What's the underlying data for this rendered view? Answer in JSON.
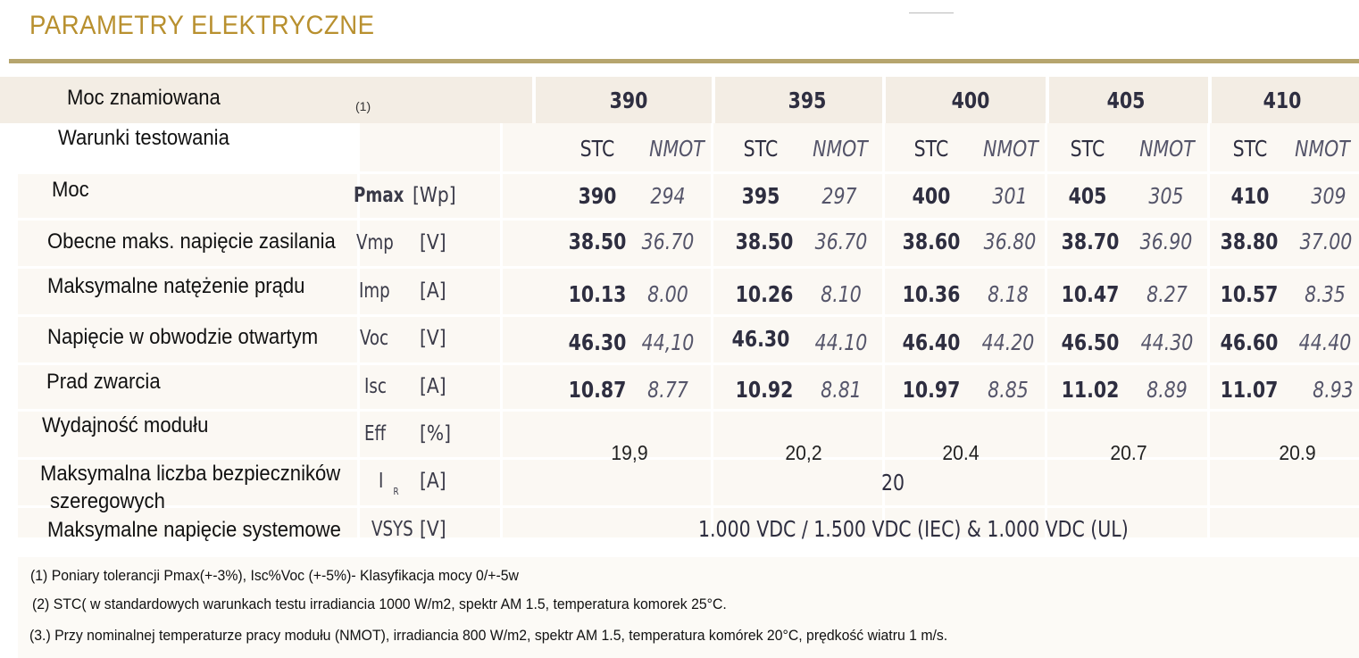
{
  "title": "PARAMETRY ELEKTRYCZNE",
  "header": {
    "label": "Moc znamiowana",
    "note": "(1)",
    "models": [
      "390",
      "395",
      "400",
      "405",
      "410"
    ]
  },
  "conditions": {
    "label": "Warunki testowania",
    "stc": "STC",
    "nmot": "NMOT"
  },
  "rows": [
    {
      "label": "Moc",
      "symbol": "Pmax",
      "unit": "[Wp]",
      "values": [
        [
          "390",
          "294"
        ],
        [
          "395",
          "297"
        ],
        [
          "400",
          "301"
        ],
        [
          "405",
          "305"
        ],
        [
          "410",
          "309"
        ]
      ]
    },
    {
      "label": "Obecne maks. napięcie zasilania",
      "symbol": "Vmp",
      "unit": "[V]",
      "values": [
        [
          "38.50",
          "36.70"
        ],
        [
          "38.50",
          "36.70"
        ],
        [
          "38.60",
          "36.80"
        ],
        [
          "38.70",
          "36.90"
        ],
        [
          "38.80",
          "37.00"
        ]
      ]
    },
    {
      "label": "Maksymalne natężenie prądu",
      "symbol": "Imp",
      "unit": "[A]",
      "values": [
        [
          "10.13",
          "8.00"
        ],
        [
          "10.26",
          "8.10"
        ],
        [
          "10.36",
          "8.18"
        ],
        [
          "10.47",
          "8.27"
        ],
        [
          "10.57",
          "8.35"
        ]
      ]
    },
    {
      "label": "Napięcie w obwodzie otwartym",
      "symbol": "Voc",
      "unit": "[V]",
      "values": [
        [
          "46.30",
          "44,10"
        ],
        [
          "46.30",
          "44.10"
        ],
        [
          "46.40",
          "44.20"
        ],
        [
          "46.50",
          "44.30"
        ],
        [
          "46.60",
          "44.40"
        ]
      ]
    },
    {
      "label": "Prad zwarcia",
      "symbol": "Isc",
      "unit": "[A]",
      "values": [
        [
          "10.87",
          "8.77"
        ],
        [
          "10.92",
          "8.81"
        ],
        [
          "10.97",
          "8.85"
        ],
        [
          "11.02",
          "8.89"
        ],
        [
          "11.07",
          "8.93"
        ]
      ]
    }
  ],
  "efficiency": {
    "label": "Wydajność modułu",
    "symbol": "Eff",
    "unit": "[%]",
    "values": [
      "19,9",
      "20,2",
      "20.4",
      "20.7",
      "20.9"
    ]
  },
  "fuse": {
    "label_line1": "Maksymalna liczba bezpieczników",
    "label_line2": "szeregowych",
    "symbol": "I",
    "symbol_sub": "R",
    "unit": "[A]",
    "value": "20"
  },
  "system_voltage": {
    "label": "Maksymalne napięcie systemowe",
    "symbol": "VSYS",
    "unit": "[V]",
    "value": "1.000 VDC / 1.500 VDC (IEC) & 1.000 VDC (UL)"
  },
  "notes": [
    "(1) Poniary tolerancji Pmax(+-3%), Isc%Voc (+-5%)- Klasyfikacja mocy 0/+-5w",
    "(2) STC( w standardowych warunkach testu irradiancia 1000 W/m2, spektr AM 1.5, temperatura komorek 25°C.",
    "(3.) Przy nominalnej temperaturze pracy modułu (NMOT), irradiancia 800 W/m2, spektr AM 1.5, temperatura komórek 20°C, prędkość wiatru 1 m/s."
  ]
}
